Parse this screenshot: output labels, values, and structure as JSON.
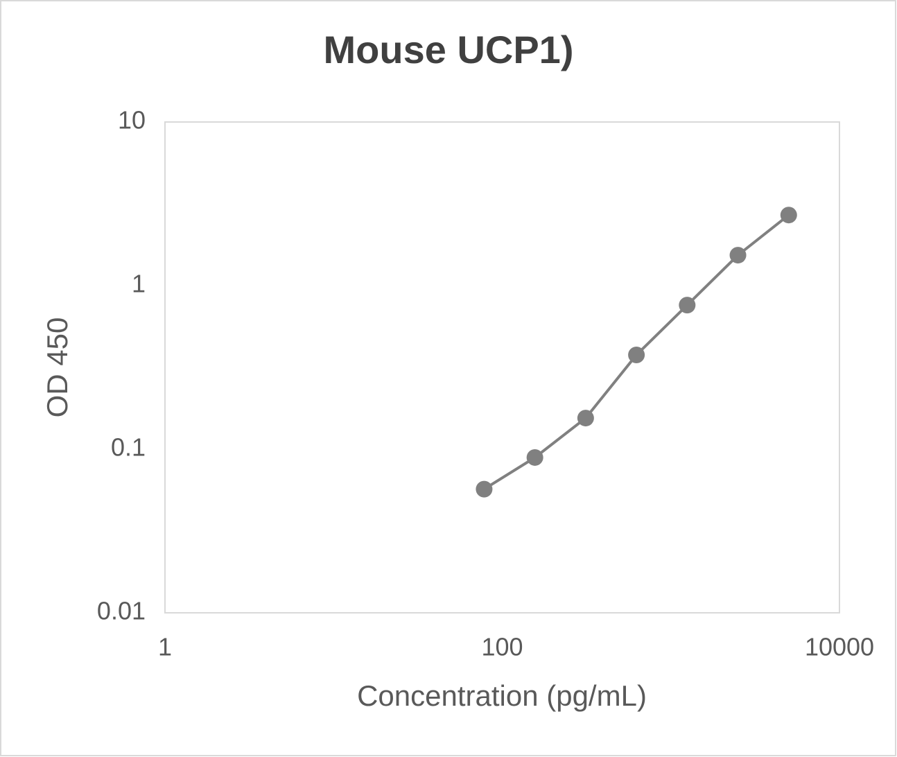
{
  "chart_data": {
    "type": "scatter",
    "title": "Mouse UCP1)",
    "x_label": "Concentration (pg/mL)",
    "y_label": "OD 450",
    "x": [
      78.125,
      156.25,
      312.5,
      625,
      1250,
      2500,
      5000
    ],
    "series": [
      {
        "color": "#808080",
        "values": [
          0.057,
          0.089,
          0.155,
          0.377,
          0.76,
          1.535,
          2.7
        ]
      }
    ],
    "xlim": [
      1,
      10000
    ],
    "ylim": [
      0.01,
      10
    ],
    "xticks": [
      1,
      100,
      10000
    ],
    "yticks": [
      0.01,
      0.1,
      1,
      10
    ],
    "xscale": "log",
    "yscale": "log",
    "grid": false,
    "line": true
  }
}
